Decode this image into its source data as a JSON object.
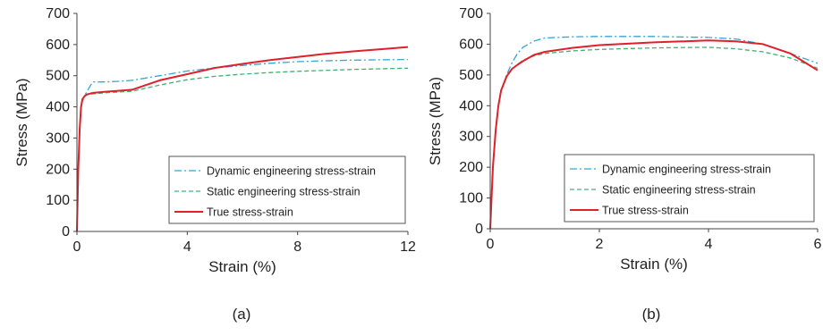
{
  "chart_data": [
    {
      "type": "line",
      "caption": "(a)",
      "xlabel": "Strain (%)",
      "ylabel": "Stress (MPa)",
      "xlim": [
        0,
        12
      ],
      "ylim": [
        0,
        700
      ],
      "xticks": [
        0,
        4,
        8,
        12
      ],
      "yticks": [
        0,
        100,
        200,
        300,
        400,
        500,
        600,
        700
      ],
      "grid": false,
      "legend_placement": "center-right",
      "series": [
        {
          "name": "Dynamic engineering stress-strain",
          "color": "#2ea6d9",
          "style": "dashdot",
          "x": [
            0,
            0.05,
            0.1,
            0.15,
            0.2,
            0.3,
            0.35,
            0.4,
            0.5,
            0.6,
            1.0,
            1.5,
            2.0,
            3.0,
            4.0,
            5.0,
            6.0,
            7.0,
            8.0,
            9.0,
            10.0,
            11.0,
            12.0
          ],
          "y": [
            0,
            200,
            330,
            400,
            425,
            440,
            447,
            455,
            470,
            480,
            480,
            482,
            485,
            500,
            515,
            525,
            533,
            540,
            545,
            548,
            550,
            551,
            552
          ]
        },
        {
          "name": "Static engineering stress-strain",
          "color": "#3cb371",
          "style": "dashed",
          "x": [
            0,
            0.05,
            0.1,
            0.15,
            0.2,
            0.3,
            0.4,
            0.6,
            1.0,
            2.0,
            3.0,
            4.0,
            5.0,
            6.0,
            7.0,
            8.0,
            9.0,
            10.0,
            11.0,
            12.0
          ],
          "y": [
            0,
            200,
            330,
            395,
            420,
            435,
            440,
            442,
            445,
            450,
            470,
            487,
            498,
            505,
            510,
            514,
            517,
            520,
            522,
            524
          ]
        },
        {
          "name": "True stress-strain",
          "color": "#e0202a",
          "style": "solid",
          "x": [
            0,
            0.05,
            0.1,
            0.15,
            0.2,
            0.3,
            0.4,
            0.6,
            1.0,
            2.0,
            3.0,
            4.0,
            5.0,
            6.0,
            7.0,
            8.0,
            9.0,
            10.0,
            11.0,
            12.0
          ],
          "y": [
            0,
            200,
            330,
            400,
            425,
            437,
            441,
            445,
            448,
            455,
            485,
            505,
            525,
            538,
            550,
            560,
            570,
            578,
            585,
            592
          ]
        }
      ]
    },
    {
      "type": "line",
      "caption": "(b)",
      "xlabel": "Strain (%)",
      "ylabel": "Stress (MPa)",
      "xlim": [
        0,
        6
      ],
      "ylim": [
        0,
        700
      ],
      "xticks": [
        0,
        2,
        4,
        6
      ],
      "yticks": [
        0,
        100,
        200,
        300,
        400,
        500,
        600,
        700
      ],
      "grid": false,
      "legend_placement": "center-right",
      "series": [
        {
          "name": "Dynamic engineering stress-strain",
          "color": "#2ea6d9",
          "style": "dashdot",
          "x": [
            0,
            0.05,
            0.1,
            0.15,
            0.2,
            0.3,
            0.4,
            0.5,
            0.6,
            0.8,
            1.0,
            1.5,
            2.0,
            3.0,
            4.0,
            4.5,
            5.0,
            5.5,
            6.0
          ],
          "y": [
            0,
            200,
            320,
            400,
            450,
            500,
            540,
            570,
            590,
            610,
            620,
            624,
            625,
            625,
            622,
            617,
            600,
            570,
            538
          ]
        },
        {
          "name": "Static engineering stress-strain",
          "color": "#3cb371",
          "style": "dashed",
          "x": [
            0,
            0.05,
            0.1,
            0.15,
            0.2,
            0.3,
            0.4,
            0.6,
            0.8,
            1.0,
            1.5,
            2.0,
            3.0,
            4.0,
            4.5,
            5.0,
            5.5,
            6.0
          ],
          "y": [
            0,
            200,
            320,
            400,
            450,
            495,
            520,
            548,
            562,
            570,
            578,
            583,
            588,
            590,
            585,
            575,
            555,
            522
          ]
        },
        {
          "name": "True stress-strain",
          "color": "#e0202a",
          "style": "solid",
          "x": [
            0,
            0.05,
            0.1,
            0.15,
            0.2,
            0.3,
            0.4,
            0.5,
            0.6,
            0.8,
            1.0,
            1.5,
            2.0,
            3.0,
            4.0,
            4.5,
            5.0,
            5.5,
            6.0
          ],
          "y": [
            0,
            200,
            320,
            400,
            450,
            495,
            520,
            533,
            545,
            565,
            575,
            588,
            597,
            606,
            612,
            609,
            600,
            570,
            515
          ]
        }
      ]
    }
  ]
}
